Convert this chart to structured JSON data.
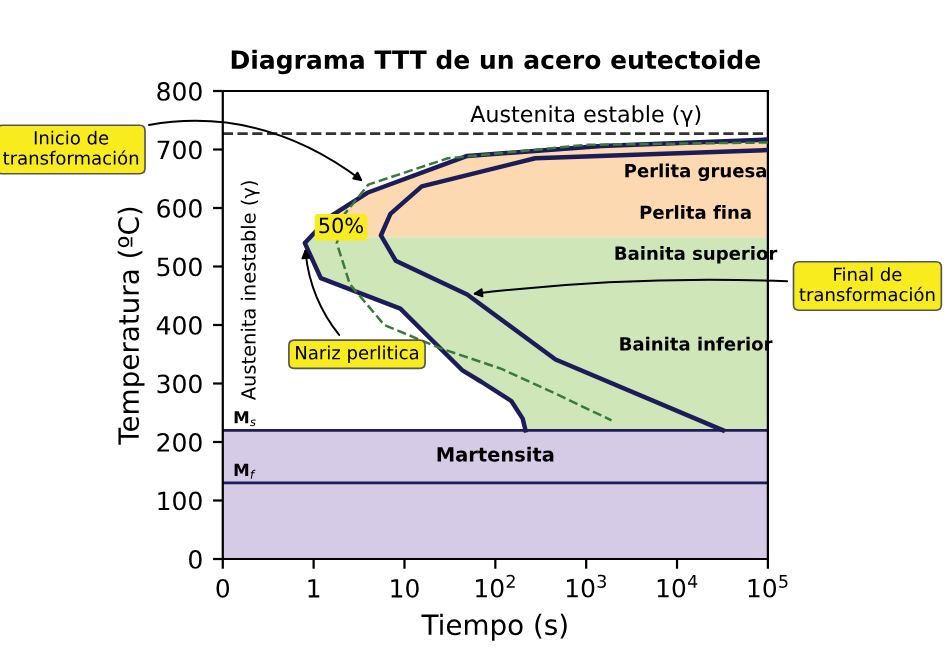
{
  "chart_data": {
    "type": "line",
    "title": "Diagrama TTT de un acero eutectoide",
    "xlabel": "Tiempo (s)",
    "ylabel": "Temperatura (ºC)",
    "log": "x",
    "xlim": [
      0.1,
      100000
    ],
    "xticks": [
      {
        "value": 0.1,
        "label": "0"
      },
      1,
      10,
      {
        "value": 100,
        "label": "10$^{2}$"
      },
      {
        "value": 1000,
        "label": "10$^{3}$"
      },
      {
        "value": 10000,
        "label": "10$^{4}$"
      },
      {
        "value": 100000,
        "label": "10$^{5}$"
      }
    ],
    "ylim": [
      0,
      800
    ],
    "yticks": [
      0,
      100,
      200,
      300,
      400,
      500,
      600,
      700,
      800
    ],
    "grid": false,
    "series": [
      {
        "color": "#1c1c5a",
        "line_style": "solid",
        "x": [
          100000,
          1480,
          49,
          3.9,
          1.5,
          0.8,
          1.2,
          9,
          43,
          70,
          150,
          200,
          215
        ],
        "values": [
          717,
          706,
          689,
          626,
          585,
          540,
          480,
          428,
          323,
          303,
          270,
          240,
          220
        ]
      },
      {
        "color": "#1c1c5a",
        "line_style": "solid",
        "x": [
          100000,
          275,
          15.5,
          7,
          5.5,
          8,
          49,
          460,
          32000
        ],
        "values": [
          699,
          685,
          637,
          590,
          553,
          510,
          452,
          341,
          220
        ]
      },
      {
        "color": "#3a7a3a",
        "line_style": "dashed",
        "x": [
          100000,
          1000,
          30,
          4,
          2.2,
          1.8,
          2.5,
          6,
          25,
          117,
          500,
          1900
        ],
        "values": [
          712,
          708,
          685,
          640,
          590,
          540,
          470,
          400,
          360,
          325,
          280,
          237
        ]
      }
    ],
    "bands": [
      {
        "axis": "y",
        "from": 550,
        "to": 727,
        "color": "#fcd9b0"
      },
      {
        "axis": "y",
        "from": 220,
        "to": 550,
        "color": "#cfe6b8"
      },
      {
        "axis": "y",
        "from": 0,
        "to": 220,
        "color": "#d6cbe6",
        "label": "Martensita"
      }
    ],
    "ref_lines": [
      {
        "axis": "y",
        "value": 727,
        "label": "Austenita estable (γ)",
        "color": "#333333",
        "line_style": "dashed"
      },
      {
        "axis": "y",
        "value": 220,
        "label": "M$_{s}$",
        "color": "#1c1c5a",
        "line_style": "solid"
      },
      {
        "axis": "y",
        "value": 130,
        "label": "M$_{f}$",
        "color": "#1c1c5a",
        "line_style": "solid"
      }
    ],
    "annotations": [
      {
        "text": "Inicio de transformación",
        "x": 3.9,
        "y": 640
      },
      {
        "text": "Final de transformación",
        "x": 49,
        "y": 452
      },
      {
        "text": "Nariz perlitica",
        "x": 0.8,
        "y": 540
      },
      {
        "text": "50%",
        "x": 2,
        "y": 567
      },
      "Perlita gruesa",
      "Perlita fina",
      "Bainita superior",
      "Bainita inferior",
      "Austenita inestable (γ)"
    ]
  }
}
